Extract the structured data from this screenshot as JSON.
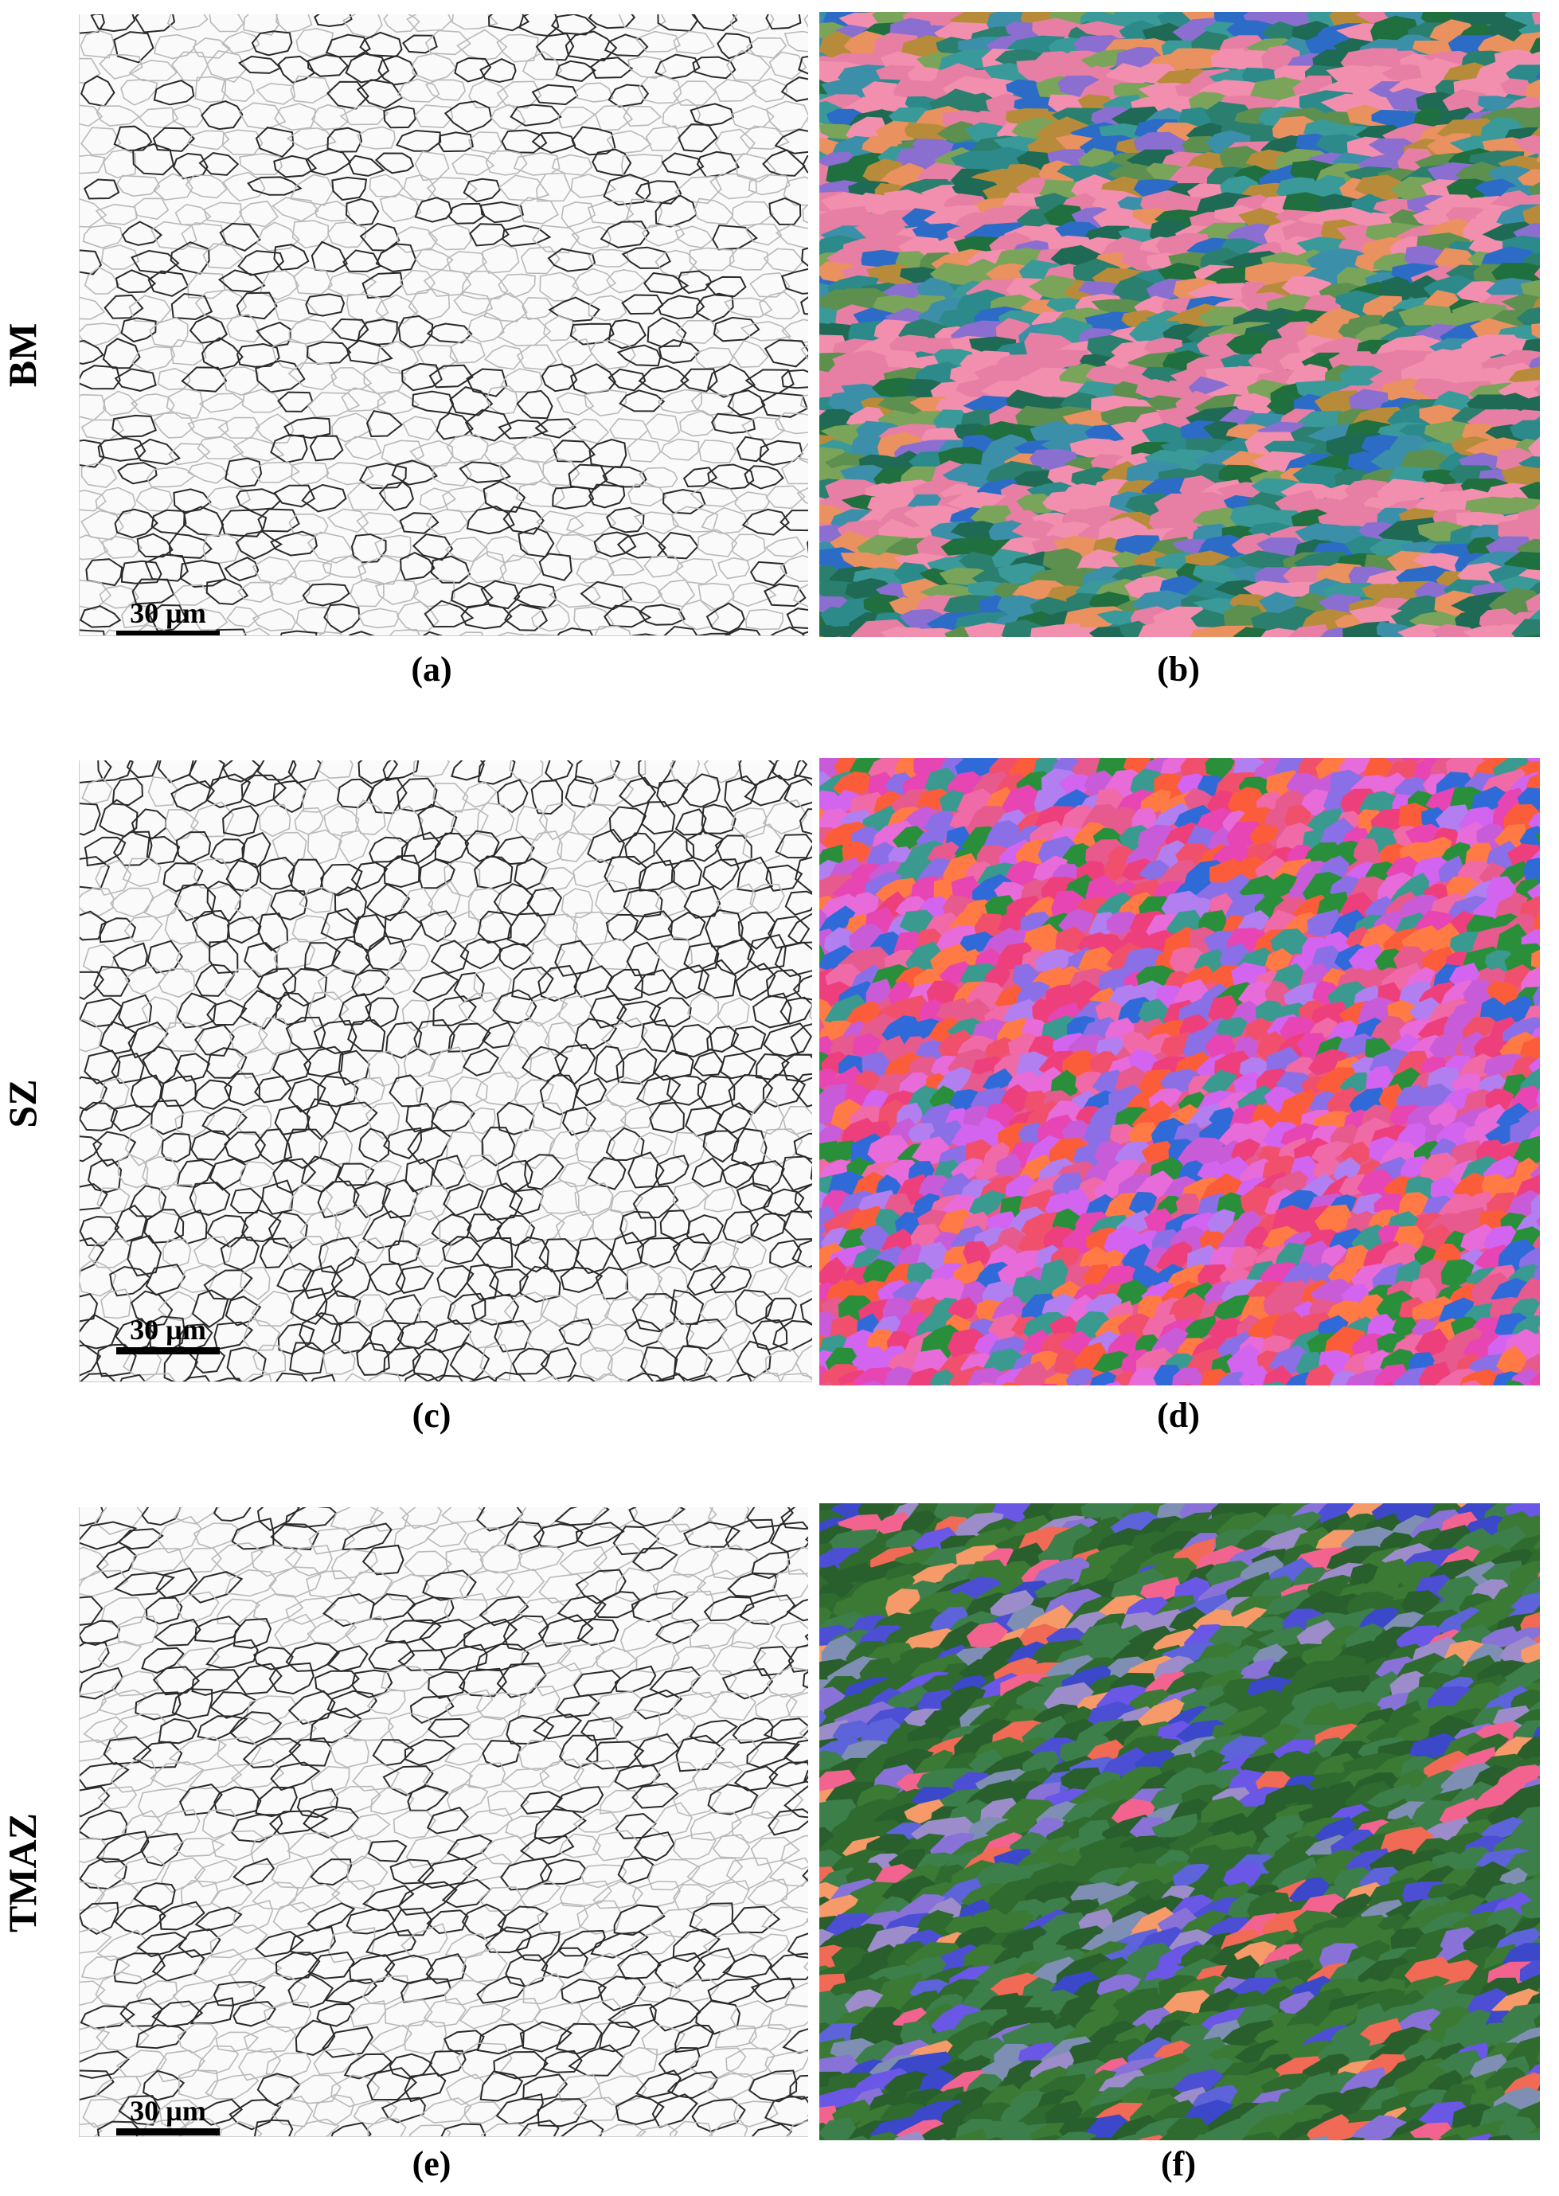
{
  "rows": [
    {
      "label": "BM",
      "left_caption": "(a)",
      "right_caption": "(b)",
      "scale_label": "30 µm",
      "ipf_colors": [
        "#2d8a8a",
        "#3a9a9a",
        "#2b7f6e",
        "#1f6a55",
        "#3c8fa8",
        "#e77fa4",
        "#f38fae",
        "#7aa45a",
        "#5d8f4f",
        "#2c6cc7",
        "#b88b3a",
        "#8a6fd0",
        "#206f3f",
        "#ea9160"
      ]
    },
    {
      "label": "SZ",
      "left_caption": "(c)",
      "right_caption": "(d)",
      "scale_label": "30 µm",
      "ipf_colors": [
        "#e75a8e",
        "#f06aa7",
        "#e645b3",
        "#c85cd8",
        "#8a6fe6",
        "#f1506c",
        "#fb5d3a",
        "#ee3f7d",
        "#2a8f3b",
        "#2f6ad8",
        "#d264ef",
        "#b17ff0",
        "#e76bd9",
        "#ff7a45",
        "#3a9a8f"
      ]
    },
    {
      "label": "TMAZ",
      "left_caption": "(e)",
      "right_caption": "(f)",
      "scale_label": "30 µm",
      "ipf_colors": [
        "#2f6a2f",
        "#3b7a35",
        "#285f2c",
        "#3d7f4a",
        "#5d63d8",
        "#6a57e6",
        "#4c4fd4",
        "#8872d8",
        "#9c8cc9",
        "#f06a55",
        "#f2648f",
        "#f59a68",
        "#3a48c9",
        "#7e8fb3"
      ]
    }
  ]
}
